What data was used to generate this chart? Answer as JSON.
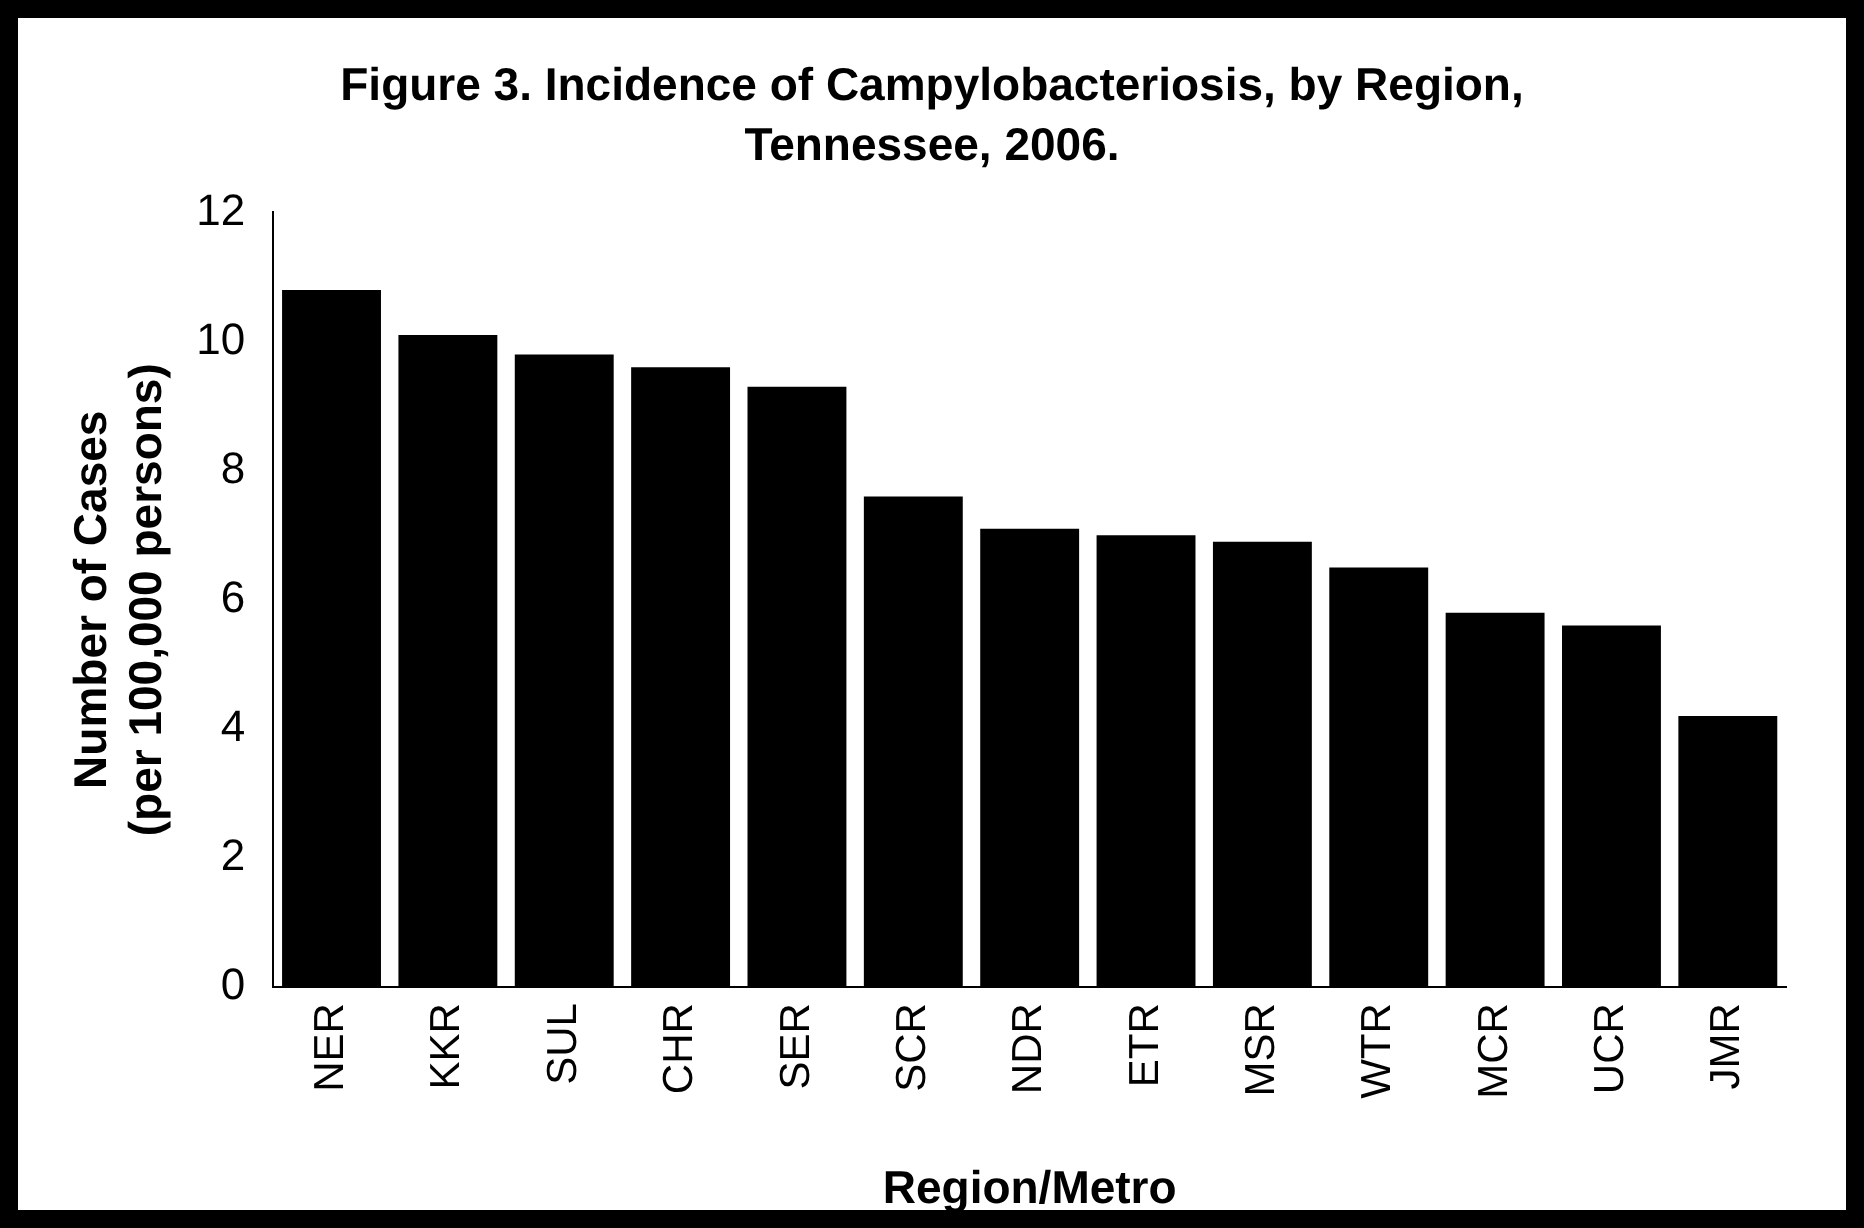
{
  "chart_data": {
    "type": "bar",
    "title": "Figure 3. Incidence of Campylobacteriosis, by Region, Tennessee, 2006.",
    "xlabel": "Region/Metro",
    "ylabel": "Number of Cases\n(per 100,000 persons)",
    "categories": [
      "NER",
      "KKR",
      "SUL",
      "CHR",
      "SER",
      "SCR",
      "NDR",
      "ETR",
      "MSR",
      "WTR",
      "MCR",
      "UCR",
      "JMR"
    ],
    "values": [
      10.8,
      10.1,
      9.8,
      9.6,
      9.3,
      7.6,
      7.1,
      7.0,
      6.9,
      6.5,
      5.8,
      5.6,
      4.2
    ],
    "color": "#000000",
    "ylim": [
      0,
      12
    ],
    "yticks": [
      0,
      2,
      4,
      6,
      8,
      10,
      12
    ],
    "grid": false,
    "legend": false
  }
}
